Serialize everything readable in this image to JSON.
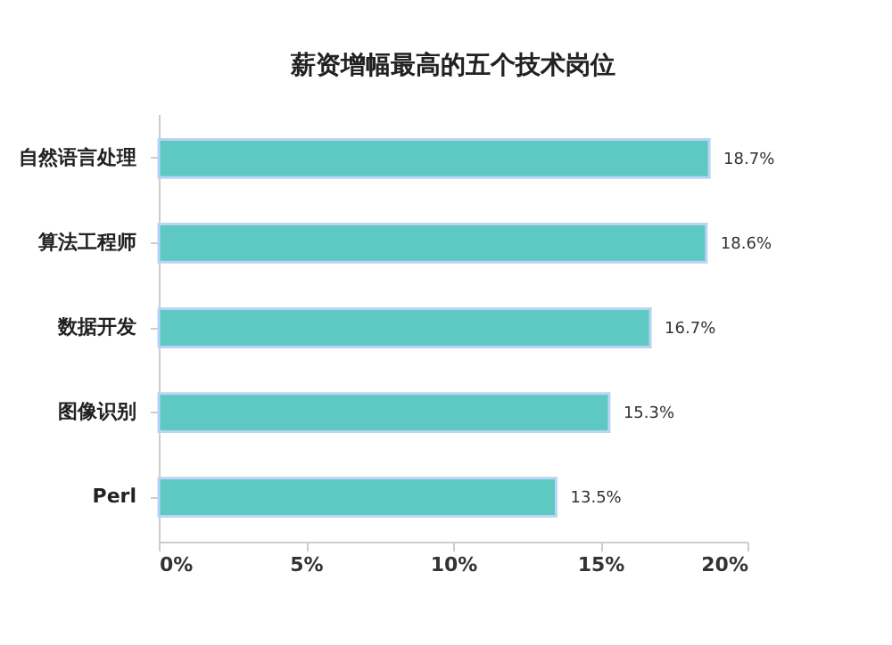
{
  "chart_data": {
    "type": "bar",
    "orientation": "horizontal",
    "title": "薪资增幅最高的五个技术岗位",
    "categories": [
      "自然语言处理",
      "算法工程师",
      "数据开发",
      "图像识别",
      "Perl"
    ],
    "values": [
      18.7,
      18.6,
      16.7,
      15.3,
      13.5
    ],
    "value_labels": [
      "18.7%",
      "18.6%",
      "16.7%",
      "15.3%",
      "13.5%"
    ],
    "color": "#5ec9c2",
    "xlim": [
      0,
      20
    ],
    "xticks": [
      {
        "value": 0,
        "label": "0%"
      },
      {
        "value": 5,
        "label": "5%"
      },
      {
        "value": 10,
        "label": "10%"
      },
      {
        "value": 15,
        "label": "15%"
      },
      {
        "value": 20,
        "label": "20%"
      }
    ],
    "grid": false
  }
}
